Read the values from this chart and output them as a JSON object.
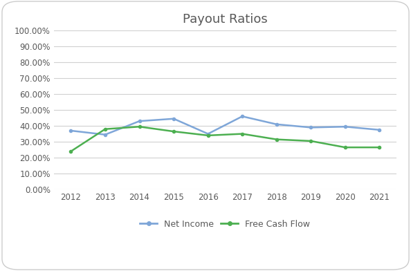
{
  "title": "Payout Ratios",
  "years": [
    2012,
    2013,
    2014,
    2015,
    2016,
    2017,
    2018,
    2019,
    2020,
    2021
  ],
  "net_income": [
    0.37,
    0.345,
    0.43,
    0.445,
    0.35,
    0.46,
    0.41,
    0.39,
    0.395,
    0.375
  ],
  "free_cash_flow": [
    0.24,
    0.38,
    0.395,
    0.365,
    0.34,
    0.35,
    0.315,
    0.305,
    0.265,
    0.265
  ],
  "net_income_color": "#7EA6D8",
  "free_cash_flow_color": "#4CAF50",
  "background_color": "#FFFFFF",
  "grid_color": "#D0D0D0",
  "border_color": "#CCCCCC",
  "ylim": [
    0.0,
    1.0
  ],
  "yticks": [
    0.0,
    0.1,
    0.2,
    0.3,
    0.4,
    0.5,
    0.6,
    0.7,
    0.8,
    0.9,
    1.0
  ],
  "legend_net_income": "Net Income",
  "legend_fcf": "Free Cash Flow",
  "title_fontsize": 13,
  "tick_fontsize": 8.5,
  "legend_fontsize": 9,
  "title_color": "#595959"
}
